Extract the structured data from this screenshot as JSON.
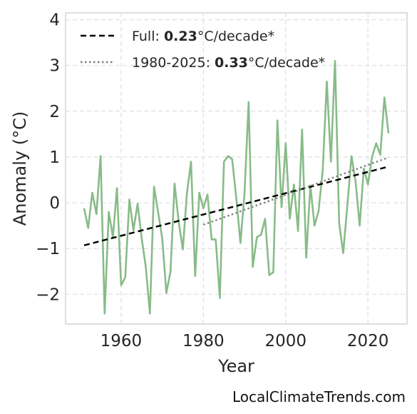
{
  "chart_data": {
    "type": "line",
    "xlabel": "Year",
    "ylabel": "Anomaly (°C)",
    "xlim": [
      1946.5,
      2029.5
    ],
    "ylim": [
      -2.65,
      4.15
    ],
    "xticks": [
      1960,
      1980,
      2000,
      2020
    ],
    "yticks": [
      -2,
      -1,
      0,
      1,
      2,
      3,
      4
    ],
    "ytick_labels": [
      "−2",
      "−1",
      "0",
      "1",
      "2",
      "3",
      "4"
    ],
    "grid": true,
    "legend_position": "top-left",
    "series": [
      {
        "color": "#88bb88",
        "style": "solid",
        "x": [
          1951,
          1952,
          1953,
          1954,
          1955,
          1956,
          1957,
          1958,
          1959,
          1960,
          1961,
          1962,
          1963,
          1964,
          1965,
          1966,
          1967,
          1968,
          1969,
          1970,
          1971,
          1972,
          1973,
          1974,
          1975,
          1976,
          1977,
          1978,
          1979,
          1980,
          1981,
          1982,
          1983,
          1984,
          1985,
          1986,
          1987,
          1988,
          1989,
          1990,
          1991,
          1992,
          1993,
          1994,
          1995,
          1996,
          1997,
          1998,
          1999,
          2000,
          2001,
          2002,
          2003,
          2004,
          2005,
          2006,
          2007,
          2008,
          2009,
          2010,
          2011,
          2012,
          2013,
          2014,
          2015,
          2016,
          2017,
          2018,
          2019,
          2020,
          2021,
          2022,
          2023,
          2024,
          2025
        ],
        "y": [
          -0.12,
          -0.55,
          0.22,
          -0.25,
          1.02,
          -2.42,
          -0.2,
          -0.75,
          0.32,
          -1.8,
          -1.63,
          0.07,
          -0.6,
          -0.02,
          -0.78,
          -1.4,
          -2.42,
          0.35,
          -0.2,
          -0.78,
          -1.97,
          -1.5,
          0.42,
          -0.42,
          -1.02,
          0.2,
          0.9,
          -1.6,
          0.22,
          -0.12,
          0.18,
          -0.8,
          -0.8,
          -2.08,
          0.9,
          1.02,
          0.95,
          0.1,
          -0.88,
          0.2,
          2.2,
          -1.4,
          -0.75,
          -0.7,
          -0.35,
          -1.58,
          -1.52,
          1.8,
          -0.1,
          1.3,
          -0.35,
          0.4,
          -0.62,
          1.6,
          -1.2,
          0.38,
          -0.5,
          -0.18,
          0.7,
          2.65,
          0.9,
          3.1,
          -0.45,
          -1.1,
          -0.05,
          1.02,
          0.45,
          -0.5,
          0.75,
          0.4,
          1.0,
          1.3,
          1.05,
          2.3,
          1.52
        ]
      },
      {
        "name": "trend-full",
        "color": "#000000",
        "style": "dashed",
        "x": [
          1951,
          2025
        ],
        "y": [
          -0.93,
          0.79
        ]
      },
      {
        "name": "trend-1980-2025",
        "color": "#808080",
        "style": "dotted",
        "x": [
          1980,
          2025
        ],
        "y": [
          -0.48,
          0.99
        ]
      }
    ],
    "legend": [
      {
        "prefix": "Full: ",
        "value": "0.23",
        "suffix": "°C/decade*",
        "color": "#000000",
        "style": "dashed"
      },
      {
        "prefix": "1980-2025: ",
        "value": "0.33",
        "suffix": "°C/decade*",
        "color": "#808080",
        "style": "dotted"
      }
    ]
  },
  "credit": "LocalClimateTrends.com"
}
